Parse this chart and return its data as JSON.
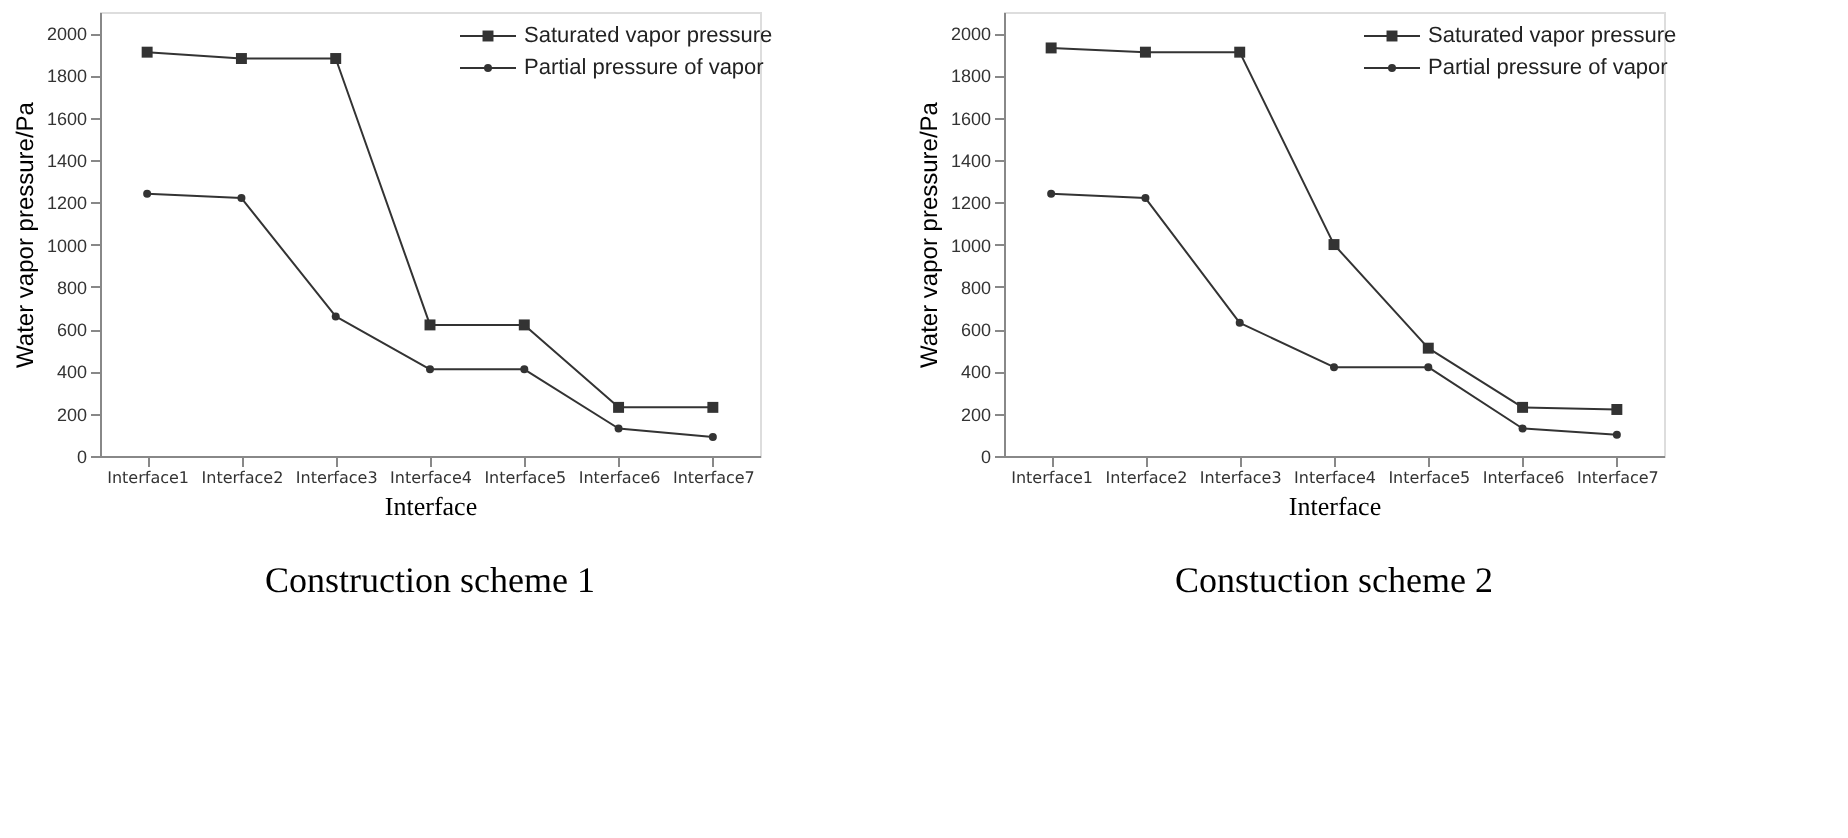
{
  "chart_data": [
    {
      "type": "line",
      "xlabel": "Interface",
      "ylabel": "Water vapor pressure/Pa",
      "annotations": [
        "Construction scheme 1"
      ],
      "categories": [
        "Interface1",
        "Interface2",
        "Interface3",
        "Interface4",
        "Interface5",
        "Interface6",
        "Interface7"
      ],
      "series": [
        {
          "name": "Saturated vapor pressure",
          "color": "#333333",
          "marker": "square",
          "values": [
            1910,
            1880,
            1880,
            620,
            620,
            230,
            230
          ]
        },
        {
          "name": "Partial pressure of vapor",
          "color": "#333333",
          "marker": "circle",
          "values": [
            1240,
            1220,
            660,
            410,
            410,
            130,
            90
          ]
        }
      ],
      "ylim": [
        0,
        2100
      ],
      "yticks": [
        0,
        200,
        400,
        600,
        800,
        1000,
        1200,
        1400,
        1600,
        1800,
        2000
      ],
      "grid": false,
      "legend": "top right",
      "line_style": "solid"
    },
    {
      "type": "line",
      "xlabel": "Interface",
      "ylabel": "Water vapor pressure/Pa",
      "annotations": [
        "Constuction scheme 2"
      ],
      "categories": [
        "Interface1",
        "Interface2",
        "Interface3",
        "Interface4",
        "Interface5",
        "Interface6",
        "Interface7"
      ],
      "series": [
        {
          "name": "Saturated vapor pressure",
          "color": "#333333",
          "marker": "square",
          "values": [
            1930,
            1910,
            1910,
            1000,
            510,
            230,
            220
          ]
        },
        {
          "name": "Partial pressure of vapor",
          "color": "#333333",
          "marker": "circle",
          "values": [
            1240,
            1220,
            630,
            420,
            420,
            130,
            100
          ]
        }
      ],
      "ylim": [
        0,
        2100
      ],
      "yticks": [
        0,
        200,
        400,
        600,
        800,
        1000,
        1200,
        1400,
        1600,
        1800,
        2000
      ],
      "grid": false,
      "legend": "top right",
      "line_style": "solid"
    }
  ]
}
